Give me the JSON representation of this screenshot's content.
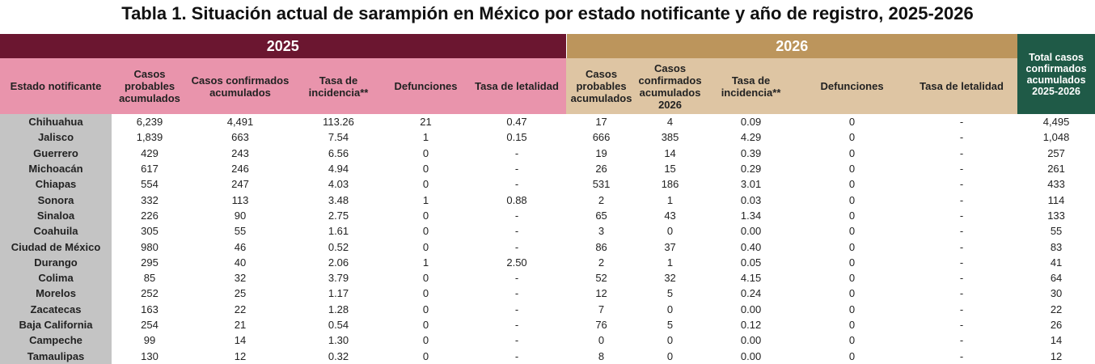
{
  "title": "Tabla 1. Situación actual de sarampión en México por estado notificante y año de registro, 2025-2026",
  "years": {
    "y2025": "2025",
    "y2026": "2026"
  },
  "headers": {
    "estado": "Estado notificante",
    "h2025": [
      "Casos probables acumulados",
      "Casos confirmados acumulados",
      "Tasa de incidencia**",
      "Defunciones",
      "Tasa de letalidad"
    ],
    "h2026": [
      "Casos probables acumulados",
      "Casos confirmados acumulados 2026",
      "Tasa de incidencia**",
      "Defunciones",
      "Tasa de letalidad"
    ],
    "total": "Total casos confirmados acumulados 2025-2026"
  },
  "colors": {
    "maroon": "#6b1630",
    "pink": "#e994ac",
    "gold": "#bc955c",
    "tan": "#dec5a3",
    "green": "#1f5a47",
    "gray": "#c4c4c4"
  },
  "rows": [
    [
      "Chihuahua",
      "6,239",
      "4,491",
      "113.26",
      "21",
      "0.47",
      "17",
      "4",
      "0.09",
      "0",
      "-",
      "4,495"
    ],
    [
      "Jalisco",
      "1,839",
      "663",
      "7.54",
      "1",
      "0.15",
      "666",
      "385",
      "4.29",
      "0",
      "-",
      "1,048"
    ],
    [
      "Guerrero",
      "429",
      "243",
      "6.56",
      "0",
      "-",
      "19",
      "14",
      "0.39",
      "0",
      "-",
      "257"
    ],
    [
      "Michoacán",
      "617",
      "246",
      "4.94",
      "0",
      "-",
      "26",
      "15",
      "0.29",
      "0",
      "-",
      "261"
    ],
    [
      "Chiapas",
      "554",
      "247",
      "4.03",
      "0",
      "-",
      "531",
      "186",
      "3.01",
      "0",
      "-",
      "433"
    ],
    [
      "Sonora",
      "332",
      "113",
      "3.48",
      "1",
      "0.88",
      "2",
      "1",
      "0.03",
      "0",
      "-",
      "114"
    ],
    [
      "Sinaloa",
      "226",
      "90",
      "2.75",
      "0",
      "-",
      "65",
      "43",
      "1.34",
      "0",
      "-",
      "133"
    ],
    [
      "Coahuila",
      "305",
      "55",
      "1.61",
      "0",
      "-",
      "3",
      "0",
      "0.00",
      "0",
      "-",
      "55"
    ],
    [
      "Ciudad de México",
      "980",
      "46",
      "0.52",
      "0",
      "-",
      "86",
      "37",
      "0.40",
      "0",
      "-",
      "83"
    ],
    [
      "Durango",
      "295",
      "40",
      "2.06",
      "1",
      "2.50",
      "2",
      "1",
      "0.05",
      "0",
      "-",
      "41"
    ],
    [
      "Colima",
      "85",
      "32",
      "3.79",
      "0",
      "-",
      "52",
      "32",
      "4.15",
      "0",
      "-",
      "64"
    ],
    [
      "Morelos",
      "252",
      "25",
      "1.17",
      "0",
      "-",
      "12",
      "5",
      "0.24",
      "0",
      "-",
      "30"
    ],
    [
      "Zacatecas",
      "163",
      "22",
      "1.28",
      "0",
      "-",
      "7",
      "0",
      "0.00",
      "0",
      "-",
      "22"
    ],
    [
      "Baja California",
      "254",
      "21",
      "0.54",
      "0",
      "-",
      "76",
      "5",
      "0.12",
      "0",
      "-",
      "26"
    ],
    [
      "Campeche",
      "99",
      "14",
      "1.30",
      "0",
      "-",
      "0",
      "0",
      "0.00",
      "0",
      "-",
      "14"
    ],
    [
      "Tamaulipas",
      "130",
      "12",
      "0.32",
      "0",
      "-",
      "8",
      "0",
      "0.00",
      "0",
      "-",
      "12"
    ]
  ]
}
